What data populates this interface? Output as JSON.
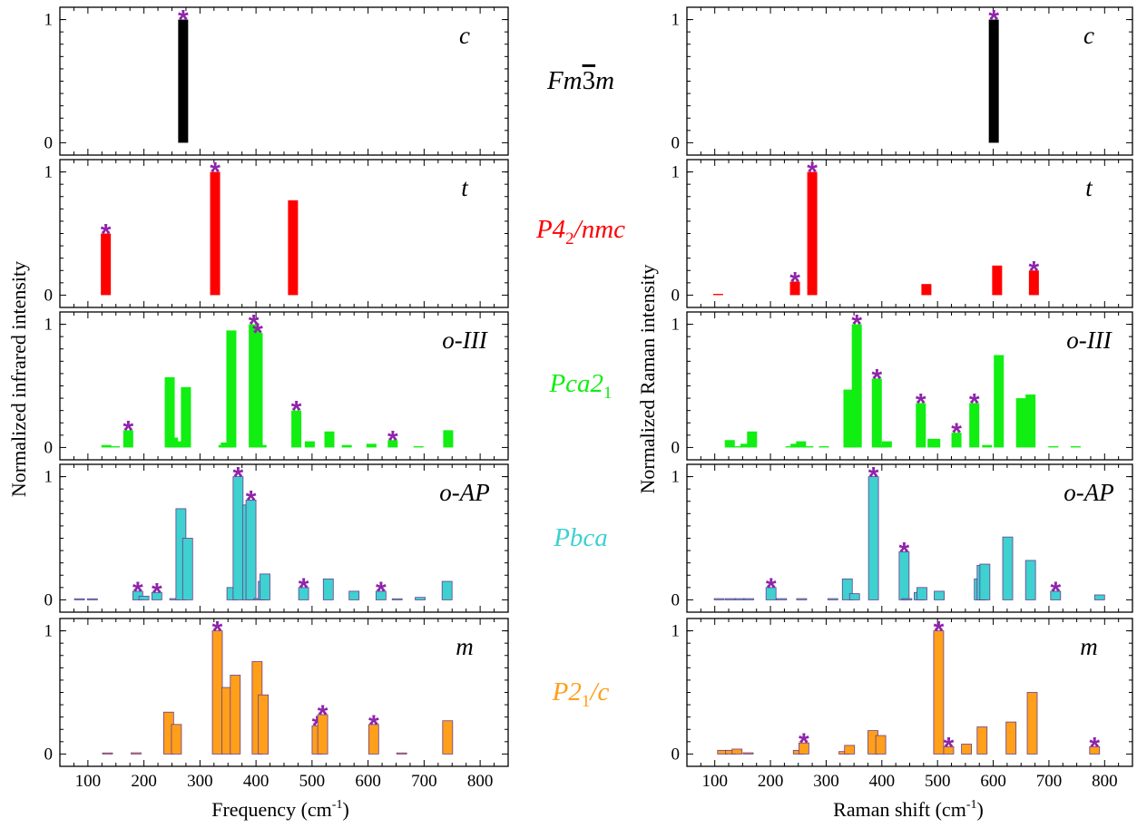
{
  "colors": {
    "star": "#8e24aa",
    "c": "#000000",
    "t": "#ff0000",
    "o3": "#11ee11",
    "oap": "#3fd0d0",
    "m": "#ff9f1a",
    "outline": "#6a3d8f"
  },
  "labels": {
    "x_left_pre": "Frequency (cm",
    "x_sup": "-1",
    "x_close": ")",
    "x_right_pre": "Raman shift (cm",
    "y_left": "Normalized infrared intensity",
    "y_right": "Normalized Raman intensity",
    "star_glyph": "*"
  },
  "spacegroups": [
    {
      "key": "c",
      "a": "Fm",
      "bar": "3",
      "b": "m",
      "color": "#000000"
    },
    {
      "key": "t",
      "a": "P4",
      "sub": "2",
      "b": "/nmc",
      "color": "#ff0000"
    },
    {
      "key": "o3",
      "a": "Pca2",
      "sub": "1",
      "b": "",
      "color": "#11ee11"
    },
    {
      "key": "oap",
      "a": "Pbca",
      "b": "",
      "color": "#3fd0d0"
    },
    {
      "key": "m",
      "a": "P2",
      "sub": "1",
      "b": "/c",
      "color": "#ff9f1a"
    }
  ],
  "chart_data": [
    {
      "type": "bar",
      "title": "",
      "xlabel": "Frequency (cm-1)",
      "ylabel": "Normalized infrared intensity",
      "xlim": [
        50,
        850
      ],
      "ylim": [
        -0.1,
        1.1
      ],
      "x_ticks": [
        100,
        200,
        300,
        400,
        500,
        600,
        700,
        800
      ],
      "y_ticks": [
        0,
        1
      ],
      "panels": [
        {
          "phase": "c",
          "color": "#000000",
          "bars": [
            {
              "x": 270,
              "y": 1.0,
              "star": true
            }
          ]
        },
        {
          "phase": "t",
          "color": "#ff0000",
          "bars": [
            {
              "x": 132,
              "y": 0.5,
              "star": true
            },
            {
              "x": 327,
              "y": 1.0,
              "star": true
            },
            {
              "x": 466,
              "y": 0.77
            }
          ]
        },
        {
          "phase": "o-III",
          "color": "#11ee11",
          "bars": [
            {
              "x": 133,
              "y": 0.02
            },
            {
              "x": 148,
              "y": 0.01
            },
            {
              "x": 172,
              "y": 0.14,
              "star": true
            },
            {
              "x": 246,
              "y": 0.57
            },
            {
              "x": 252,
              "y": 0.08
            },
            {
              "x": 260,
              "y": 0.05
            },
            {
              "x": 266,
              "y": 0.02
            },
            {
              "x": 275,
              "y": 0.49
            },
            {
              "x": 342,
              "y": 0.02
            },
            {
              "x": 346,
              "y": 0.04
            },
            {
              "x": 350,
              "y": 0.04
            },
            {
              "x": 356,
              "y": 0.95
            },
            {
              "x": 396,
              "y": 1.0,
              "star": true
            },
            {
              "x": 403,
              "y": 0.93,
              "star": true
            },
            {
              "x": 410,
              "y": 0.02
            },
            {
              "x": 472,
              "y": 0.3,
              "star": true
            },
            {
              "x": 496,
              "y": 0.05
            },
            {
              "x": 531,
              "y": 0.13
            },
            {
              "x": 562,
              "y": 0.02
            },
            {
              "x": 606,
              "y": 0.03
            },
            {
              "x": 644,
              "y": 0.06,
              "star": true
            },
            {
              "x": 690,
              "y": 0.01
            },
            {
              "x": 743,
              "y": 0.14
            }
          ]
        },
        {
          "phase": "o-AP",
          "color": "#3fd0d0",
          "bars": [
            {
              "x": 85,
              "y": 0.0
            },
            {
              "x": 108,
              "y": 0.0
            },
            {
              "x": 189,
              "y": 0.07,
              "star": true
            },
            {
              "x": 200,
              "y": 0.03
            },
            {
              "x": 223,
              "y": 0.06,
              "star": true
            },
            {
              "x": 255,
              "y": 0.01
            },
            {
              "x": 266,
              "y": 0.74
            },
            {
              "x": 278,
              "y": 0.5
            },
            {
              "x": 357,
              "y": 0.1
            },
            {
              "x": 368,
              "y": 1.0,
              "star": true
            },
            {
              "x": 385,
              "y": 0.77
            },
            {
              "x": 391,
              "y": 0.81,
              "star": true
            },
            {
              "x": 405,
              "y": 0.01
            },
            {
              "x": 413,
              "y": 0.15
            },
            {
              "x": 416,
              "y": 0.21
            },
            {
              "x": 485,
              "y": 0.1,
              "star": true
            },
            {
              "x": 529,
              "y": 0.17
            },
            {
              "x": 575,
              "y": 0.07
            },
            {
              "x": 623,
              "y": 0.07,
              "star": true
            },
            {
              "x": 652,
              "y": 0.0
            },
            {
              "x": 693,
              "y": 0.02
            },
            {
              "x": 741,
              "y": 0.15
            }
          ]
        },
        {
          "phase": "m",
          "color": "#ff9f1a",
          "bars": [
            {
              "x": 135,
              "y": 0.0
            },
            {
              "x": 186,
              "y": 0.01
            },
            {
              "x": 244,
              "y": 0.34
            },
            {
              "x": 258,
              "y": 0.24
            },
            {
              "x": 331,
              "y": 1.0,
              "star": true
            },
            {
              "x": 348,
              "y": 0.54
            },
            {
              "x": 363,
              "y": 0.64
            },
            {
              "x": 402,
              "y": 0.75
            },
            {
              "x": 413,
              "y": 0.48
            },
            {
              "x": 509,
              "y": 0.23,
              "star": true
            },
            {
              "x": 519,
              "y": 0.32,
              "star": true
            },
            {
              "x": 610,
              "y": 0.24,
              "star": true
            },
            {
              "x": 660,
              "y": 0.0
            },
            {
              "x": 742,
              "y": 0.27
            }
          ]
        }
      ]
    },
    {
      "type": "bar",
      "title": "",
      "xlabel": "Raman shift (cm-1)",
      "ylabel": "Normalized Raman intensity",
      "xlim": [
        50,
        850
      ],
      "ylim": [
        -0.1,
        1.1
      ],
      "x_ticks": [
        100,
        200,
        300,
        400,
        500,
        600,
        700,
        800
      ],
      "y_ticks": [
        0,
        1
      ],
      "panels": [
        {
          "phase": "c",
          "color": "#000000",
          "bars": [
            {
              "x": 601,
              "y": 1.0,
              "star": true
            }
          ]
        },
        {
          "phase": "t",
          "color": "#ff0000",
          "bars": [
            {
              "x": 106,
              "y": 0.01
            },
            {
              "x": 244,
              "y": 0.11,
              "star": true
            },
            {
              "x": 275,
              "y": 1.0,
              "star": true
            },
            {
              "x": 480,
              "y": 0.09
            },
            {
              "x": 607,
              "y": 0.24
            },
            {
              "x": 673,
              "y": 0.2,
              "star": true
            }
          ]
        },
        {
          "phase": "o-III",
          "color": "#11ee11",
          "bars": [
            {
              "x": 127,
              "y": 0.06
            },
            {
              "x": 140,
              "y": 0.01
            },
            {
              "x": 155,
              "y": 0.03
            },
            {
              "x": 167,
              "y": 0.13
            },
            {
              "x": 236,
              "y": 0.01
            },
            {
              "x": 245,
              "y": 0.03
            },
            {
              "x": 255,
              "y": 0.05
            },
            {
              "x": 268,
              "y": 0.01
            },
            {
              "x": 296,
              "y": 0.01
            },
            {
              "x": 340,
              "y": 0.47
            },
            {
              "x": 346,
              "y": 0.06
            },
            {
              "x": 355,
              "y": 1.0,
              "star": true
            },
            {
              "x": 391,
              "y": 0.56,
              "star": true
            },
            {
              "x": 400,
              "y": 0.02
            },
            {
              "x": 409,
              "y": 0.05
            },
            {
              "x": 470,
              "y": 0.36,
              "star": true
            },
            {
              "x": 491,
              "y": 0.07
            },
            {
              "x": 496,
              "y": 0.07
            },
            {
              "x": 534,
              "y": 0.12,
              "star": true
            },
            {
              "x": 566,
              "y": 0.36,
              "star": true
            },
            {
              "x": 589,
              "y": 0.02
            },
            {
              "x": 610,
              "y": 0.75
            },
            {
              "x": 650,
              "y": 0.4
            },
            {
              "x": 667,
              "y": 0.43
            },
            {
              "x": 708,
              "y": 0.01
            },
            {
              "x": 748,
              "y": 0.01
            }
          ]
        },
        {
          "phase": "o-AP",
          "color": "#3fd0d0",
          "bars": [
            {
              "x": 108,
              "y": 0.01
            },
            {
              "x": 128,
              "y": 0.01
            },
            {
              "x": 145,
              "y": 0.01
            },
            {
              "x": 161,
              "y": 0.01
            },
            {
              "x": 201,
              "y": 0.1,
              "star": true
            },
            {
              "x": 220,
              "y": 0.01
            },
            {
              "x": 256,
              "y": 0.01
            },
            {
              "x": 312,
              "y": 0.01
            },
            {
              "x": 338,
              "y": 0.17
            },
            {
              "x": 351,
              "y": 0.05
            },
            {
              "x": 385,
              "y": 1.0,
              "star": true
            },
            {
              "x": 440,
              "y": 0.39,
              "star": true
            },
            {
              "x": 445,
              "y": 0.01
            },
            {
              "x": 467,
              "y": 0.06
            },
            {
              "x": 472,
              "y": 0.1
            },
            {
              "x": 503,
              "y": 0.07
            },
            {
              "x": 575,
              "y": 0.17
            },
            {
              "x": 580,
              "y": 0.28
            },
            {
              "x": 585,
              "y": 0.29
            },
            {
              "x": 626,
              "y": 0.51
            },
            {
              "x": 667,
              "y": 0.32
            },
            {
              "x": 712,
              "y": 0.07,
              "star": true
            },
            {
              "x": 791,
              "y": 0.04
            }
          ]
        },
        {
          "phase": "m",
          "color": "#ff9f1a",
          "bars": [
            {
              "x": 114,
              "y": 0.03
            },
            {
              "x": 128,
              "y": 0.03
            },
            {
              "x": 140,
              "y": 0.04
            },
            {
              "x": 160,
              "y": 0.01
            },
            {
              "x": 250,
              "y": 0.03
            },
            {
              "x": 260,
              "y": 0.09,
              "star": true
            },
            {
              "x": 332,
              "y": 0.02
            },
            {
              "x": 342,
              "y": 0.07
            },
            {
              "x": 384,
              "y": 0.19
            },
            {
              "x": 398,
              "y": 0.15
            },
            {
              "x": 502,
              "y": 1.0,
              "star": true
            },
            {
              "x": 520,
              "y": 0.06,
              "star": true
            },
            {
              "x": 552,
              "y": 0.08
            },
            {
              "x": 580,
              "y": 0.22
            },
            {
              "x": 632,
              "y": 0.26
            },
            {
              "x": 670,
              "y": 0.5
            },
            {
              "x": 782,
              "y": 0.06,
              "star": true
            }
          ]
        }
      ]
    }
  ]
}
